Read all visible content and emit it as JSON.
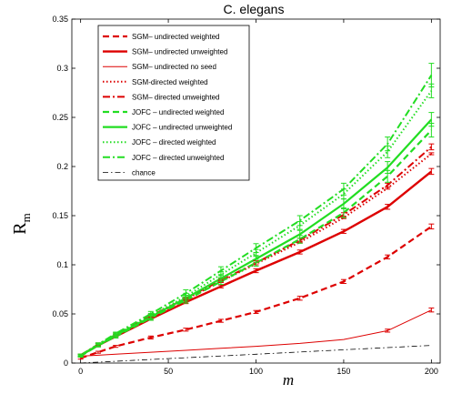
{
  "chart_data": {
    "type": "line",
    "title": "C. elegans",
    "xlabel": "m",
    "ylabel": "R",
    "ylabel_subscript": "m",
    "xlim": [
      -5,
      205
    ],
    "ylim": [
      0,
      0.35
    ],
    "xticks": [
      "0",
      "50",
      "100",
      "150",
      "200"
    ],
    "xtick_values": [
      0,
      50,
      100,
      150,
      200
    ],
    "yticks": [
      "0",
      "0.05",
      "0.1",
      "0.15",
      "0.2",
      "0.25",
      "0.3",
      "0.35"
    ],
    "ytick_values": [
      0,
      0.05,
      0.1,
      0.15,
      0.2,
      0.25,
      0.3,
      0.35
    ],
    "legend_position": "top-left",
    "series": [
      {
        "name": "SGM–  undirected weighted",
        "color": "#dd0000",
        "style": "dashed",
        "width": 2.2,
        "x": [
          0,
          10,
          20,
          40,
          60,
          80,
          100,
          125,
          150,
          175,
          200
        ],
        "y": [
          0.005,
          0.011,
          0.017,
          0.026,
          0.034,
          0.043,
          0.052,
          0.066,
          0.083,
          0.108,
          0.139
        ],
        "err": [
          0.001,
          0.001,
          0.001,
          0.0015,
          0.0015,
          0.0015,
          0.0015,
          0.002,
          0.002,
          0.002,
          0.0025
        ]
      },
      {
        "name": "SGM–   undirected unweighted",
        "color": "#dd0000",
        "style": "solid",
        "width": 2.4,
        "x": [
          0,
          10,
          20,
          40,
          60,
          80,
          100,
          125,
          150,
          175,
          200
        ],
        "y": [
          0.008,
          0.018,
          0.027,
          0.045,
          0.062,
          0.078,
          0.094,
          0.113,
          0.134,
          0.159,
          0.195
        ],
        "err": [
          0.001,
          0.0015,
          0.0015,
          0.0015,
          0.0015,
          0.0015,
          0.002,
          0.002,
          0.002,
          0.0025,
          0.003
        ]
      },
      {
        "name": "SGM–  undirected no seed",
        "color": "#dd0000",
        "style": "solid",
        "width": 1,
        "x": [
          0,
          10,
          20,
          40,
          60,
          80,
          100,
          125,
          150,
          175,
          200
        ],
        "y": [
          0.007,
          0.008,
          0.009,
          0.011,
          0.013,
          0.015,
          0.017,
          0.02,
          0.024,
          0.033,
          0.054
        ],
        "err": [
          0,
          0,
          0,
          0,
          0,
          0,
          0,
          0,
          0,
          0.0015,
          0.002
        ]
      },
      {
        "name": "SGM-directed weighted",
        "color": "#dd0000",
        "style": "dotted",
        "width": 2,
        "x": [
          0,
          10,
          20,
          40,
          60,
          80,
          100,
          125,
          150,
          175,
          200
        ],
        "y": [
          0.008,
          0.019,
          0.028,
          0.047,
          0.065,
          0.083,
          0.101,
          0.123,
          0.148,
          0.178,
          0.213
        ],
        "err": [
          0.001,
          0.001,
          0.001,
          0.001,
          0.001,
          0.001,
          0.001,
          0.001,
          0.001,
          0.001,
          0.001
        ]
      },
      {
        "name": "SGM–  directed unweighted",
        "color": "#dd0000",
        "style": "dashdot",
        "width": 2,
        "x": [
          0,
          10,
          20,
          40,
          60,
          80,
          100,
          125,
          150,
          175,
          200
        ],
        "y": [
          0.008,
          0.019,
          0.029,
          0.048,
          0.066,
          0.084,
          0.102,
          0.125,
          0.151,
          0.181,
          0.22
        ],
        "err": [
          0.001,
          0.0015,
          0.0015,
          0.0015,
          0.0015,
          0.0015,
          0.002,
          0.002,
          0.002,
          0.002,
          0.003
        ]
      },
      {
        "name": "JOFC – undirected weighted",
        "color": "#22dd22",
        "style": "dashed",
        "width": 2.2,
        "x": [
          0,
          10,
          20,
          40,
          60,
          80,
          100,
          125,
          150,
          175,
          200
        ],
        "y": [
          0.007,
          0.018,
          0.027,
          0.046,
          0.064,
          0.083,
          0.102,
          0.126,
          0.153,
          0.19,
          0.237
        ],
        "err": [
          0.001,
          0.0015,
          0.0015,
          0.0025,
          0.003,
          0.003,
          0.0035,
          0.004,
          0.005,
          0.006,
          0.007
        ]
      },
      {
        "name": "JOFC – undirected unweighted",
        "color": "#22dd22",
        "style": "solid",
        "width": 2.2,
        "x": [
          0,
          10,
          20,
          40,
          60,
          80,
          100,
          125,
          150,
          175,
          200
        ],
        "y": [
          0.008,
          0.018,
          0.028,
          0.047,
          0.066,
          0.086,
          0.106,
          0.131,
          0.162,
          0.199,
          0.248
        ],
        "err": [
          0.001,
          0.0015,
          0.0015,
          0.0025,
          0.003,
          0.003,
          0.0035,
          0.004,
          0.005,
          0.006,
          0.007
        ]
      },
      {
        "name": "JOFC – directed weighted",
        "color": "#22dd22",
        "style": "dotted",
        "width": 2,
        "x": [
          0,
          10,
          20,
          40,
          60,
          80,
          100,
          125,
          150,
          175,
          200
        ],
        "y": [
          0.008,
          0.019,
          0.029,
          0.048,
          0.068,
          0.09,
          0.112,
          0.14,
          0.172,
          0.215,
          0.277
        ],
        "err": [
          0.001,
          0.0015,
          0.0015,
          0.0025,
          0.003,
          0.003,
          0.0035,
          0.004,
          0.005,
          0.006,
          0.007
        ]
      },
      {
        "name": "JOFC – directed unweighted",
        "color": "#22dd22",
        "style": "dashdot",
        "width": 2,
        "x": [
          0,
          10,
          20,
          40,
          60,
          80,
          100,
          125,
          150,
          175,
          200
        ],
        "y": [
          0.008,
          0.019,
          0.03,
          0.05,
          0.071,
          0.094,
          0.117,
          0.145,
          0.177,
          0.223,
          0.293
        ],
        "err": [
          0.001,
          0.0015,
          0.0015,
          0.0025,
          0.0035,
          0.004,
          0.0045,
          0.005,
          0.006,
          0.007,
          0.012
        ]
      },
      {
        "name": "chance",
        "color": "#000000",
        "style": "dashdot",
        "width": 0.8,
        "x": [
          0,
          50,
          100,
          150,
          200
        ],
        "y": [
          0,
          0.0045,
          0.009,
          0.0135,
          0.018
        ],
        "err": []
      }
    ]
  }
}
